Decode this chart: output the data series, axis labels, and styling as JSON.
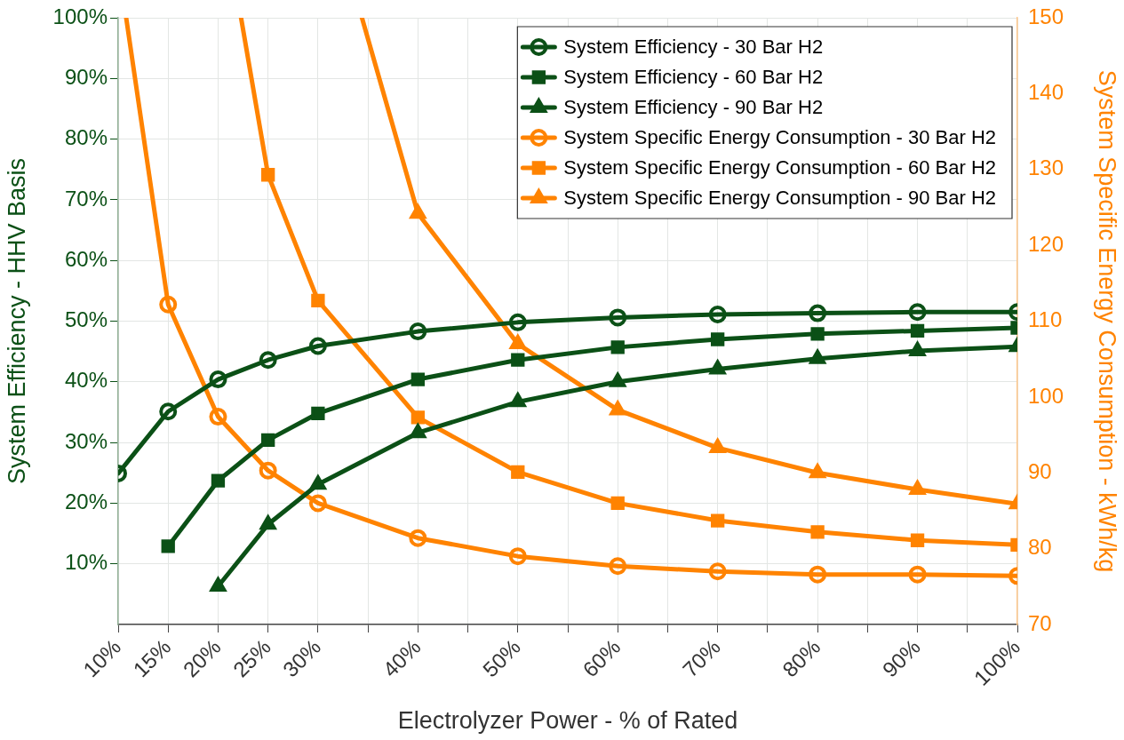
{
  "chart_data": {
    "type": "line",
    "xlabel": "Electrolyzer Power - % of Rated",
    "ylabel": "System Efficiency - HHV Basis",
    "y2label": "System Specific Energy Consumption - kWh/kg",
    "xlim": [
      10,
      100
    ],
    "xticks": [
      {
        "value": 10,
        "label": "10%"
      },
      {
        "value": 15,
        "label": "15%"
      },
      {
        "value": 20,
        "label": "20%"
      },
      {
        "value": 25,
        "label": "25%"
      },
      {
        "value": 30,
        "label": "30%"
      },
      {
        "value": 35,
        "label": null
      },
      {
        "value": 40,
        "label": "40%"
      },
      {
        "value": 45,
        "label": null
      },
      {
        "value": 50,
        "label": "50%"
      },
      {
        "value": 55,
        "label": null
      },
      {
        "value": 60,
        "label": "60%"
      },
      {
        "value": 65,
        "label": null
      },
      {
        "value": 70,
        "label": "70%"
      },
      {
        "value": 75,
        "label": null
      },
      {
        "value": 80,
        "label": "80%"
      },
      {
        "value": 85,
        "label": null
      },
      {
        "value": 90,
        "label": "90%"
      },
      {
        "value": 95,
        "label": null
      },
      {
        "value": 100,
        "label": "100%"
      }
    ],
    "ylim": [
      0,
      100
    ],
    "yticks": [
      {
        "value": 10,
        "label": "10%"
      },
      {
        "value": 20,
        "label": "20%"
      },
      {
        "value": 30,
        "label": "30%"
      },
      {
        "value": 40,
        "label": "40%"
      },
      {
        "value": 50,
        "label": "50%"
      },
      {
        "value": 60,
        "label": "60%"
      },
      {
        "value": 70,
        "label": "70%"
      },
      {
        "value": 80,
        "label": "80%"
      },
      {
        "value": 90,
        "label": "90%"
      },
      {
        "value": 100,
        "label": "100%"
      }
    ],
    "y2lim": [
      70,
      150
    ],
    "y2ticks": [
      70,
      80,
      90,
      100,
      110,
      120,
      130,
      140,
      150
    ],
    "grid": true,
    "legend": "top right",
    "series": [
      {
        "name": "System Efficiency - 30 Bar H2",
        "color": "#0b5016",
        "marker": "circle",
        "x": [
          10,
          15,
          20,
          25,
          30,
          40,
          50,
          60,
          70,
          80,
          90,
          100
        ],
        "values": [
          24.9,
          35.1,
          40.4,
          43.6,
          45.9,
          48.3,
          49.8,
          50.6,
          51.1,
          51.3,
          51.5,
          51.5
        ]
      },
      {
        "name": "System Efficiency - 60 Bar H2",
        "color": "#0b5016",
        "marker": "square",
        "x": [
          15,
          20,
          25,
          30,
          40,
          50,
          60,
          70,
          80,
          90,
          100
        ],
        "values": [
          12.9,
          23.7,
          30.4,
          34.8,
          40.4,
          43.6,
          45.7,
          47.0,
          47.9,
          48.4,
          48.9
        ]
      },
      {
        "name": "System Efficiency - 90 Bar H2",
        "color": "#0b5016",
        "marker": "triangle",
        "x": [
          20,
          25,
          30,
          40,
          50,
          60,
          70,
          80,
          90,
          100
        ],
        "values": [
          6.3,
          16.5,
          23.1,
          31.6,
          36.7,
          40.0,
          42.1,
          43.8,
          45.1,
          45.8
        ]
      },
      {
        "name": "System Specific Energy Consumption - 30 Bar H2",
        "color": "#ff8300",
        "marker": "circle",
        "axis": "y2",
        "x": [
          10.8,
          15,
          20,
          25,
          30,
          40,
          50,
          60,
          70,
          80,
          90,
          100
        ],
        "values": [
          150,
          112.2,
          97.4,
          90.3,
          86.0,
          81.4,
          79.0,
          77.7,
          77.0,
          76.6,
          76.6,
          76.4
        ]
      },
      {
        "name": "System Specific Energy Consumption - 60 Bar H2",
        "color": "#ff8300",
        "marker": "square",
        "axis": "y2",
        "x": [
          22.3,
          25,
          30,
          40,
          50,
          60,
          70,
          80,
          90,
          100
        ],
        "values": [
          150,
          129.3,
          112.7,
          97.3,
          90.1,
          86.0,
          83.7,
          82.2,
          81.1,
          80.5
        ]
      },
      {
        "name": "System Specific Energy Consumption - 90 Bar H2",
        "color": "#ff8300",
        "marker": "triangle",
        "axis": "y2",
        "x": [
          34.4,
          40,
          50,
          60,
          70,
          80,
          90,
          100
        ],
        "values": [
          150,
          124.2,
          107.0,
          98.3,
          93.3,
          90.0,
          87.8,
          85.9
        ]
      }
    ]
  }
}
